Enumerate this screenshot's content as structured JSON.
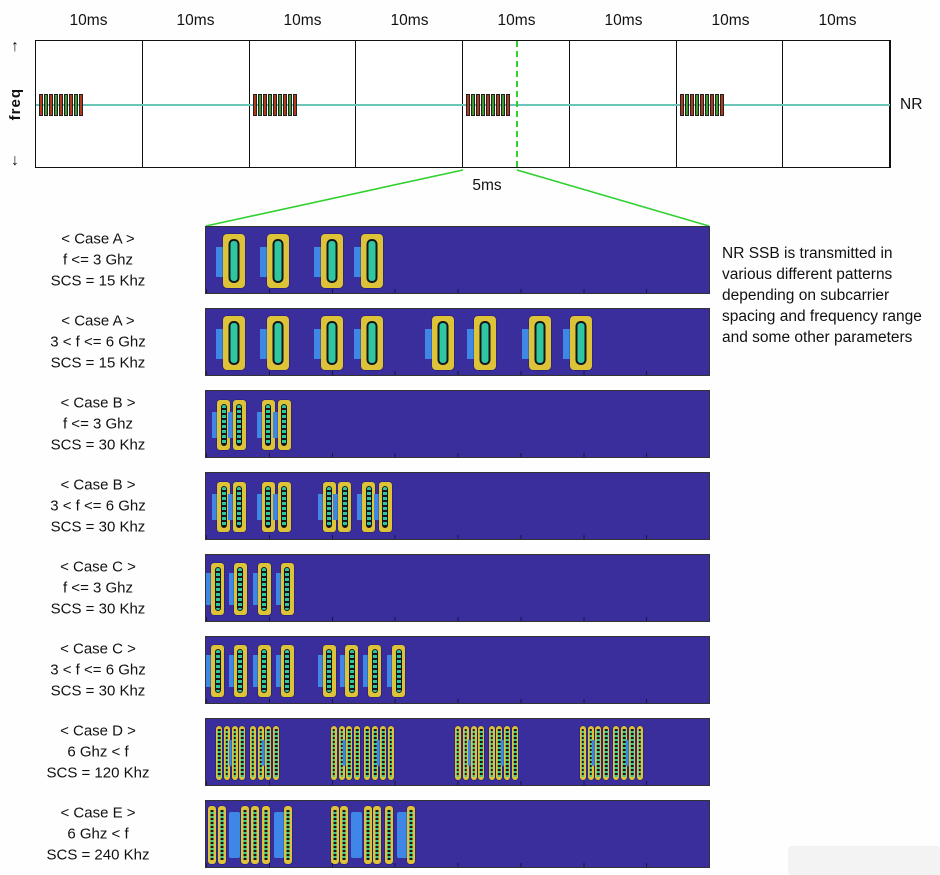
{
  "timeline": {
    "frame_duration_label": "10ms",
    "frame_count": 8,
    "freq_axis_label": "freq",
    "line_label": "NR",
    "half_frame_label": "5ms",
    "ssb_burst_frame_indices": [
      0,
      2,
      4,
      6
    ]
  },
  "annotation": {
    "text": "NR SSB is transmitted in various different patterns depending on subcarrier spacing and frequency range and some other parameters"
  },
  "colors": {
    "bar_background": "#3a2d9c",
    "ssb_yellow": "#ddc337",
    "ssb_teal": "#2fc7a0",
    "ssb_blue": "#3f87e6",
    "burst_red": "#b2391c",
    "burst_green": "#3f9b2e",
    "carrier_teal": "#6cc6b8",
    "zoom_green": "#2ed12e"
  },
  "cases": [
    {
      "case_label": "< Case A >",
      "freq_range": "f <= 3 Ghz",
      "scs": "SCS = 15 Khz",
      "block_type": "A",
      "positions": [
        3.4,
        12.1,
        22.8,
        30.9
      ]
    },
    {
      "case_label": "< Case A >",
      "freq_range": "3 < f <= 6 Ghz",
      "scs": "SCS = 15 Khz",
      "block_type": "A",
      "positions": [
        3.4,
        12.1,
        22.8,
        30.9,
        44.9,
        53.3,
        64.2,
        72.3
      ]
    },
    {
      "case_label": "< Case B >",
      "freq_range": "f <= 3 Ghz",
      "scs": "SCS = 30 Khz",
      "block_type": "B",
      "positions": [
        2.2,
        5.3,
        11.1,
        14.3
      ]
    },
    {
      "case_label": "< Case B >",
      "freq_range": "3 < f <= 6 Ghz",
      "scs": "SCS = 30 Khz",
      "block_type": "B",
      "positions": [
        2.2,
        5.3,
        11.1,
        14.3,
        23.2,
        26.3,
        31.1,
        34.3
      ]
    },
    {
      "case_label": "< Case C >",
      "freq_range": "f <= 3 Ghz",
      "scs": "SCS = 30 Khz",
      "block_type": "C",
      "positions": [
        1.0,
        5.5,
        10.3,
        14.9
      ]
    },
    {
      "case_label": "< Case C >",
      "freq_range": "3 < f <= 6 Ghz",
      "scs": "SCS = 30 Khz",
      "block_type": "C",
      "positions": [
        1.0,
        5.5,
        10.3,
        14.9,
        23.2,
        27.7,
        32.3,
        37.0
      ]
    },
    {
      "case_label": "< Case D >",
      "freq_range": "6 Ghz < f",
      "scs": "SCS = 120 Khz",
      "block_type": "D",
      "cluster_starts": [
        2.0,
        24.8,
        49.5,
        74.3
      ],
      "cluster_offsets": [
        0,
        1.55,
        3.1,
        4.65,
        6.7,
        8.25,
        9.8,
        11.35
      ],
      "blue_offset_indices": [
        2,
        6
      ]
    },
    {
      "case_label": "< Case E >",
      "freq_range": "6 Ghz < f",
      "scs": "SCS = 240 Khz",
      "block_type": "E",
      "cluster_starts": [
        0.4,
        24.8
      ],
      "cluster_offsets": [
        0,
        1.9,
        4.1,
        6.6,
        8.5,
        10.7,
        13.2,
        15.1
      ],
      "blue_offset_indices": [
        2,
        6
      ]
    }
  ]
}
